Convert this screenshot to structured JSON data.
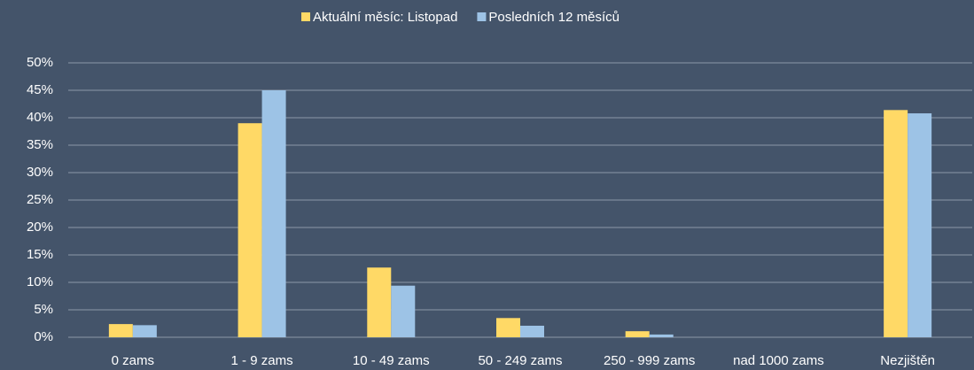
{
  "chart_data": {
    "type": "bar",
    "categories": [
      "0 zams",
      "1 - 9 zams",
      "10 - 49 zams",
      "50 - 249 zams",
      "250 - 999 zams",
      "nad 1000 zams",
      "Nezjištěn"
    ],
    "series": [
      {
        "name": "Aktuální měsíc: Listopad",
        "color": "#ffd966",
        "values": [
          2.4,
          39,
          12.7,
          3.5,
          1.1,
          0,
          41.4
        ]
      },
      {
        "name": "Posledních 12 měsíců",
        "color": "#9dc3e6",
        "values": [
          2.2,
          45,
          9.4,
          2.1,
          0.5,
          0,
          40.8
        ]
      }
    ],
    "ylim": [
      0,
      50
    ],
    "yticks": [
      {
        "value": 0,
        "label": "0%"
      },
      {
        "value": 5,
        "label": "5%"
      },
      {
        "value": 10,
        "label": "10%"
      },
      {
        "value": 15,
        "label": "15%"
      },
      {
        "value": 20,
        "label": "20%"
      },
      {
        "value": 25,
        "label": "25%"
      },
      {
        "value": 30,
        "label": "30%"
      },
      {
        "value": 35,
        "label": "35%"
      },
      {
        "value": 40,
        "label": "40%"
      },
      {
        "value": 45,
        "label": "45%"
      },
      {
        "value": 50,
        "label": "50%"
      }
    ],
    "grid": true,
    "legend": "top"
  }
}
